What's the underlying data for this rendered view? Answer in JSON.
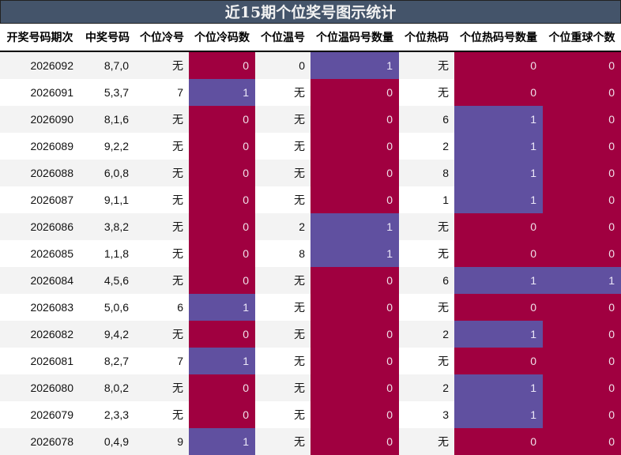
{
  "title": "近15期个位奖号图示统计",
  "colors": {
    "header_bg": "#44546a",
    "zero_fill": "#a00040",
    "one_fill": "#6050a0",
    "stripe": "#f3f3f3"
  },
  "columns": [
    "开奖号码期次",
    "中奖号码",
    "个位冷号",
    "个位冷码数",
    "个位温号",
    "个位温码号数量",
    "个位热码",
    "个位热码号数量",
    "个位重球个数"
  ],
  "rows": [
    {
      "issue": "2026092",
      "numbers": "8,7,0",
      "cold": "无",
      "cold_count": "0",
      "warm": "0",
      "warm_count": "1",
      "hot": "无",
      "hot_count": "0",
      "repeat": "0"
    },
    {
      "issue": "2026091",
      "numbers": "5,3,7",
      "cold": "7",
      "cold_count": "1",
      "warm": "无",
      "warm_count": "0",
      "hot": "无",
      "hot_count": "0",
      "repeat": "0"
    },
    {
      "issue": "2026090",
      "numbers": "8,1,6",
      "cold": "无",
      "cold_count": "0",
      "warm": "无",
      "warm_count": "0",
      "hot": "6",
      "hot_count": "1",
      "repeat": "0"
    },
    {
      "issue": "2026089",
      "numbers": "9,2,2",
      "cold": "无",
      "cold_count": "0",
      "warm": "无",
      "warm_count": "0",
      "hot": "2",
      "hot_count": "1",
      "repeat": "0"
    },
    {
      "issue": "2026088",
      "numbers": "6,0,8",
      "cold": "无",
      "cold_count": "0",
      "warm": "无",
      "warm_count": "0",
      "hot": "8",
      "hot_count": "1",
      "repeat": "0"
    },
    {
      "issue": "2026087",
      "numbers": "9,1,1",
      "cold": "无",
      "cold_count": "0",
      "warm": "无",
      "warm_count": "0",
      "hot": "1",
      "hot_count": "1",
      "repeat": "0"
    },
    {
      "issue": "2026086",
      "numbers": "3,8,2",
      "cold": "无",
      "cold_count": "0",
      "warm": "2",
      "warm_count": "1",
      "hot": "无",
      "hot_count": "0",
      "repeat": "0"
    },
    {
      "issue": "2026085",
      "numbers": "1,1,8",
      "cold": "无",
      "cold_count": "0",
      "warm": "8",
      "warm_count": "1",
      "hot": "无",
      "hot_count": "0",
      "repeat": "0"
    },
    {
      "issue": "2026084",
      "numbers": "4,5,6",
      "cold": "无",
      "cold_count": "0",
      "warm": "无",
      "warm_count": "0",
      "hot": "6",
      "hot_count": "1",
      "repeat": "1"
    },
    {
      "issue": "2026083",
      "numbers": "5,0,6",
      "cold": "6",
      "cold_count": "1",
      "warm": "无",
      "warm_count": "0",
      "hot": "无",
      "hot_count": "0",
      "repeat": "0"
    },
    {
      "issue": "2026082",
      "numbers": "9,4,2",
      "cold": "无",
      "cold_count": "0",
      "warm": "无",
      "warm_count": "0",
      "hot": "2",
      "hot_count": "1",
      "repeat": "0"
    },
    {
      "issue": "2026081",
      "numbers": "8,2,7",
      "cold": "7",
      "cold_count": "1",
      "warm": "无",
      "warm_count": "0",
      "hot": "无",
      "hot_count": "0",
      "repeat": "0"
    },
    {
      "issue": "2026080",
      "numbers": "8,0,2",
      "cold": "无",
      "cold_count": "0",
      "warm": "无",
      "warm_count": "0",
      "hot": "2",
      "hot_count": "1",
      "repeat": "0"
    },
    {
      "issue": "2026079",
      "numbers": "2,3,3",
      "cold": "无",
      "cold_count": "0",
      "warm": "无",
      "warm_count": "0",
      "hot": "3",
      "hot_count": "1",
      "repeat": "0"
    },
    {
      "issue": "2026078",
      "numbers": "0,4,9",
      "cold": "9",
      "cold_count": "1",
      "warm": "无",
      "warm_count": "0",
      "hot": "无",
      "hot_count": "0",
      "repeat": "0"
    }
  ]
}
